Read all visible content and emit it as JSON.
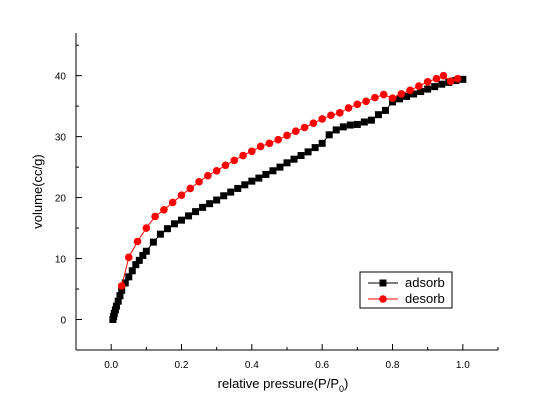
{
  "chart_data": {
    "type": "scatter",
    "title": "",
    "xlabel": "relative pressure(P/P",
    "xlabel_sub": "0",
    "xlabel_tail": ")",
    "ylabel": "volume(cc/g)",
    "xlim": [
      -0.1,
      1.1
    ],
    "ylim": [
      -5,
      47
    ],
    "xticks": [
      0.0,
      0.2,
      0.4,
      0.6,
      0.8,
      1.0
    ],
    "xtick_labels": [
      "0.0",
      "0.2",
      "0.4",
      "0.6",
      "0.8",
      "1.0"
    ],
    "yticks": [
      0,
      10,
      20,
      30,
      40
    ],
    "ytick_labels": [
      "0",
      "10",
      "20",
      "30",
      "40"
    ],
    "grid": false,
    "legend_position": "bottom-right",
    "series": [
      {
        "name": "adsorb",
        "color": "#000000",
        "marker": "square",
        "x": [
          0.005,
          0.007,
          0.009,
          0.012,
          0.015,
          0.02,
          0.025,
          0.03,
          0.04,
          0.05,
          0.06,
          0.07,
          0.08,
          0.09,
          0.1,
          0.12,
          0.14,
          0.16,
          0.18,
          0.2,
          0.22,
          0.24,
          0.26,
          0.28,
          0.3,
          0.32,
          0.34,
          0.36,
          0.38,
          0.4,
          0.42,
          0.44,
          0.46,
          0.48,
          0.5,
          0.52,
          0.54,
          0.56,
          0.58,
          0.6,
          0.62,
          0.64,
          0.66,
          0.68,
          0.7,
          0.72,
          0.74,
          0.76,
          0.78,
          0.8,
          0.82,
          0.84,
          0.86,
          0.88,
          0.9,
          0.92,
          0.94,
          0.96,
          0.98,
          1.0
        ],
        "y": [
          0.0,
          0.5,
          1.0,
          1.6,
          2.2,
          3.0,
          3.9,
          4.8,
          6.0,
          7.0,
          8.0,
          9.0,
          9.7,
          10.5,
          11.2,
          12.7,
          14.0,
          14.9,
          15.7,
          16.3,
          17.0,
          17.7,
          18.4,
          19.0,
          19.6,
          20.3,
          20.9,
          21.5,
          22.1,
          22.7,
          23.2,
          23.8,
          24.4,
          25.0,
          25.7,
          26.3,
          26.9,
          27.5,
          28.2,
          28.9,
          30.3,
          31.1,
          31.6,
          31.9,
          32.0,
          32.4,
          32.7,
          33.6,
          34.3,
          35.7,
          36.2,
          36.6,
          37.0,
          37.4,
          37.8,
          38.2,
          38.6,
          38.9,
          39.2,
          39.4
        ]
      },
      {
        "name": "desorb",
        "color": "#ff0000",
        "marker": "circle",
        "x": [
          0.03,
          0.05,
          0.075,
          0.1,
          0.125,
          0.15,
          0.175,
          0.2,
          0.225,
          0.25,
          0.275,
          0.3,
          0.325,
          0.35,
          0.375,
          0.4,
          0.425,
          0.45,
          0.475,
          0.5,
          0.525,
          0.55,
          0.575,
          0.6,
          0.625,
          0.65,
          0.675,
          0.7,
          0.725,
          0.75,
          0.775,
          0.8,
          0.825,
          0.85,
          0.875,
          0.9,
          0.925,
          0.945,
          0.965,
          0.985
        ],
        "y": [
          5.5,
          10.2,
          12.8,
          15.0,
          16.9,
          18.0,
          19.2,
          20.4,
          21.5,
          22.6,
          23.6,
          24.4,
          25.3,
          26.1,
          26.9,
          27.6,
          28.4,
          28.9,
          29.5,
          30.2,
          30.9,
          31.5,
          32.2,
          32.9,
          33.5,
          33.9,
          34.7,
          35.3,
          35.8,
          36.4,
          36.9,
          36.3,
          37.0,
          37.6,
          38.3,
          39.0,
          39.5,
          40.0,
          39.1,
          39.5
        ]
      }
    ]
  }
}
